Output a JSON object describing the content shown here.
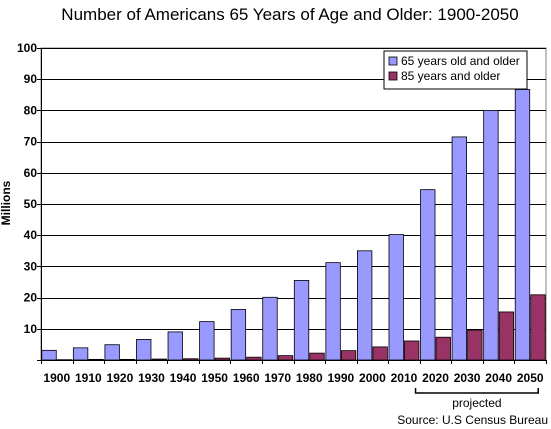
{
  "chart_data": {
    "type": "bar",
    "title": "Number of Americans 65 Years of Age and Older: 1900-2050",
    "ylabel": "Millions",
    "xlabel": "",
    "ylim": [
      0,
      100
    ],
    "yticks": [
      10,
      20,
      30,
      40,
      50,
      60,
      70,
      80,
      90,
      100
    ],
    "categories": [
      "1900",
      "1910",
      "1920",
      "1930",
      "1940",
      "1950",
      "1960",
      "1970",
      "1980",
      "1990",
      "2000",
      "2010",
      "2020",
      "2030",
      "2040",
      "2050"
    ],
    "series": [
      {
        "name": "65 years old and older",
        "color": "#9999ff",
        "values": [
          3.1,
          3.9,
          4.9,
          6.6,
          9.0,
          12.3,
          16.2,
          20.1,
          25.5,
          31.2,
          35.0,
          40.2,
          54.6,
          71.5,
          80.0,
          86.7
        ]
      },
      {
        "name": "85 years and older",
        "color": "#993366",
        "values": [
          0.1,
          0.2,
          0.2,
          0.3,
          0.4,
          0.6,
          0.9,
          1.4,
          2.2,
          3.0,
          4.2,
          6.1,
          7.3,
          9.6,
          15.4,
          20.9
        ]
      }
    ],
    "legend_position": "top-right",
    "grid": true,
    "annotation": "projected",
    "source": "Source: U.S Census Bureau"
  }
}
